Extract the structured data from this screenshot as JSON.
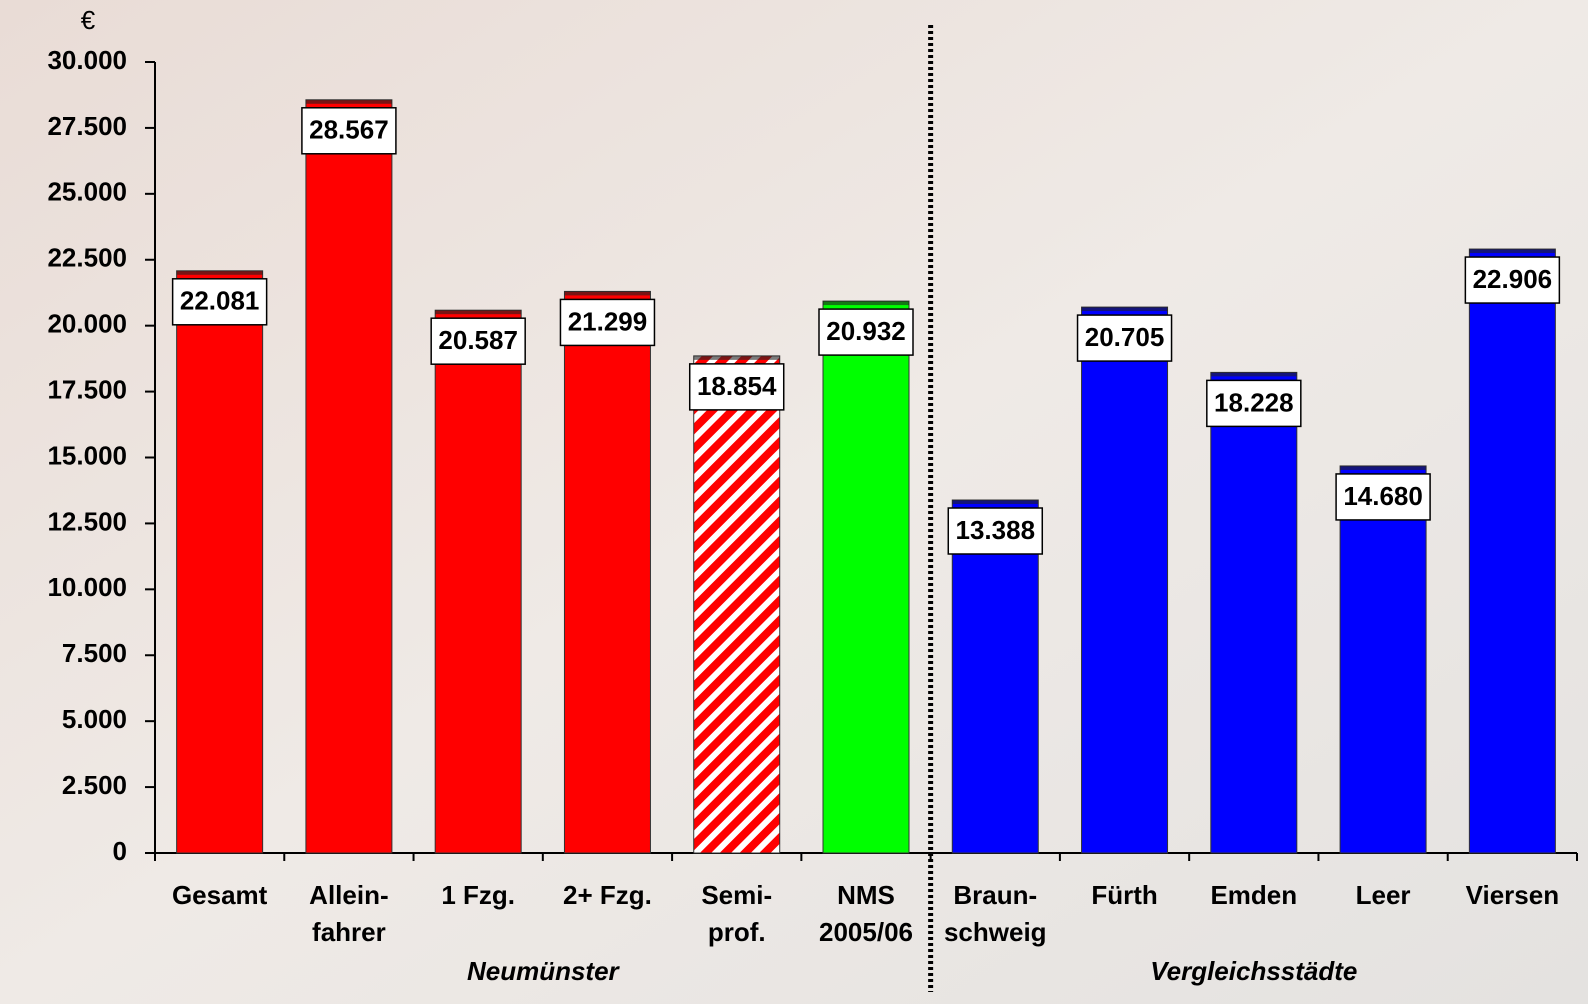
{
  "chart_data": {
    "type": "bar",
    "unit_label": "€",
    "categories": [
      [
        "Gesamt"
      ],
      [
        "Allein-",
        "fahrer"
      ],
      [
        "1 Fzg."
      ],
      [
        "2+ Fzg."
      ],
      [
        "Semi-",
        "prof."
      ],
      [
        "NMS",
        "2005/06"
      ],
      [
        "Braun-",
        "schweig"
      ],
      [
        "Fürth"
      ],
      [
        "Emden"
      ],
      [
        "Leer"
      ],
      [
        "Viersen"
      ]
    ],
    "values": [
      22081,
      28567,
      20587,
      21299,
      18854,
      20932,
      13388,
      20705,
      18228,
      14680,
      22906
    ],
    "value_labels": [
      "22.081",
      "28.567",
      "20.587",
      "21.299",
      "18.854",
      "20.932",
      "13.388",
      "20.705",
      "18.228",
      "14.680",
      "22.906"
    ],
    "colors": [
      "#ff0000",
      "#ff0000",
      "#ff0000",
      "#ff0000",
      "#ff0000",
      "#00ff00",
      "#0000ff",
      "#0000ff",
      "#0000ff",
      "#0000ff",
      "#0000ff"
    ],
    "hatched": [
      false,
      false,
      false,
      false,
      true,
      false,
      false,
      false,
      false,
      false,
      false
    ],
    "groups": [
      {
        "label": "Neumünster",
        "start": 0,
        "end": 5
      },
      {
        "label": "Vergleichsstädte",
        "start": 6,
        "end": 10
      }
    ],
    "ylim": [
      0,
      30000
    ],
    "yticks": [
      0,
      {
        "value": 2500,
        "label": "2.500"
      },
      {
        "value": 5000,
        "label": "5.000"
      },
      {
        "value": 7500,
        "label": "7.500"
      },
      {
        "value": 10000,
        "label": "10.000"
      },
      {
        "value": 12500,
        "label": "12.500"
      },
      {
        "value": 15000,
        "label": "15.000"
      },
      {
        "value": 17500,
        "label": "17.500"
      },
      {
        "value": 20000,
        "label": "20.000"
      },
      {
        "value": 22500,
        "label": "22.500"
      },
      {
        "value": 25000,
        "label": "25.000"
      },
      {
        "value": 27500,
        "label": "27.500"
      },
      {
        "value": 30000,
        "label": "30.000"
      }
    ]
  }
}
